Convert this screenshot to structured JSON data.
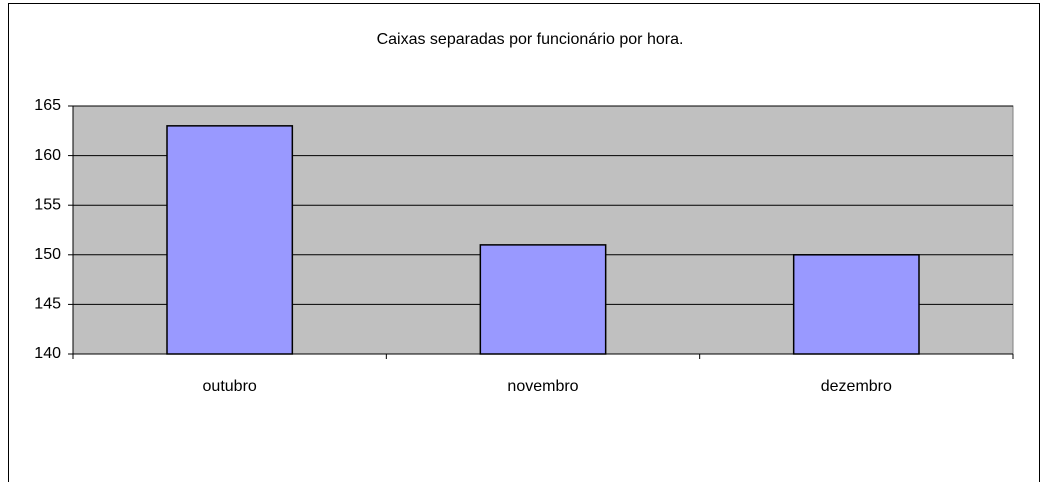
{
  "chart_data": {
    "type": "bar",
    "title": "Caixas separadas por funcionário por hora.",
    "categories": [
      "outubro",
      "novembro",
      "dezembro"
    ],
    "values": [
      163,
      151,
      150
    ],
    "color": "#9999ff",
    "ylim": [
      140,
      165
    ],
    "yticks": [
      140,
      145,
      150,
      155,
      160,
      165
    ],
    "grid": true
  }
}
